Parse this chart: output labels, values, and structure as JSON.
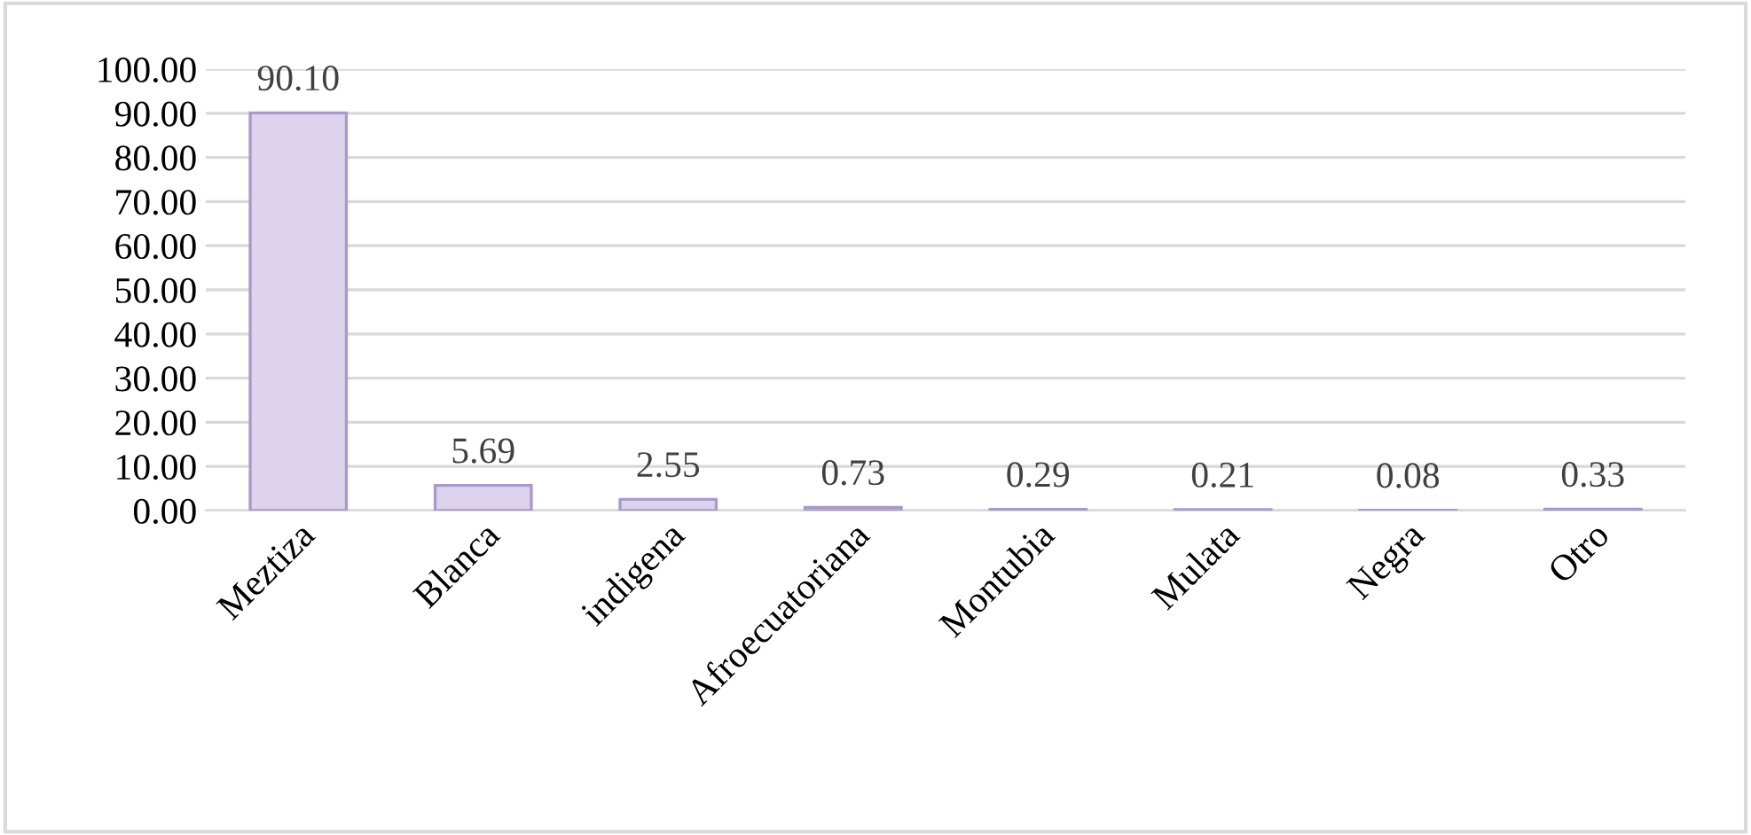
{
  "chart_data": {
    "type": "bar",
    "categories": [
      "Meztiza",
      "Blanca",
      "indigena",
      "Afroecuatoriana",
      "Montubia",
      "Mulata",
      "Negra",
      "Otro"
    ],
    "values": [
      90.1,
      5.69,
      2.55,
      0.73,
      0.29,
      0.21,
      0.08,
      0.33
    ],
    "value_labels": [
      "90.10",
      "5.69",
      "2.55",
      "0.73",
      "0.29",
      "0.21",
      "0.08",
      "0.33"
    ],
    "color": "#ddd3ee",
    "ylim": [
      0,
      100
    ],
    "yticks": [
      {
        "value": 0,
        "label": "0.00"
      },
      {
        "value": 10,
        "label": "10.00"
      },
      {
        "value": 20,
        "label": "20.00"
      },
      {
        "value": 30,
        "label": "30.00"
      },
      {
        "value": 40,
        "label": "40.00"
      },
      {
        "value": 50,
        "label": "50.00"
      },
      {
        "value": 60,
        "label": "60.00"
      },
      {
        "value": 70,
        "label": "70.00"
      },
      {
        "value": 80,
        "label": "80.00"
      },
      {
        "value": 90,
        "label": "90.00"
      },
      {
        "value": 100,
        "label": "100.00"
      }
    ],
    "grid": "y"
  }
}
